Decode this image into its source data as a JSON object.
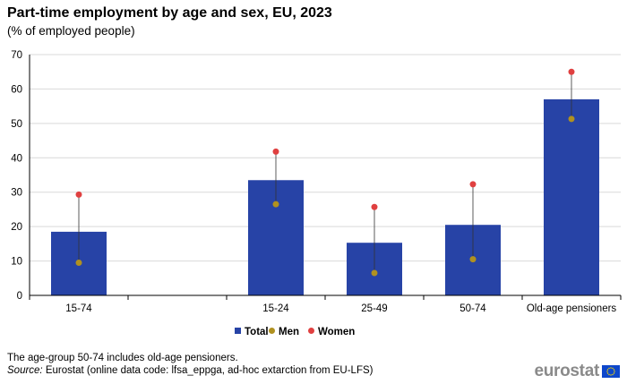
{
  "title": "Part-time employment by age and sex, EU, 2023",
  "subtitle": "(% of employed people)",
  "notes": {
    "line1": "The age-group 50-74 includes old-age pensioners.",
    "source_label": "Source:",
    "source_text": " Eurostat (online data code: lfsa_eppga, ad-hoc extarction from EU-LFS)"
  },
  "logo": {
    "text": "eurostat",
    "flag_icon": "eu-flag-icon"
  },
  "colors": {
    "total": "#2743A6",
    "men": "#B09120",
    "women": "#E04040",
    "grid": "#d9d9d9",
    "axis": "#000000"
  },
  "chart_data": {
    "type": "bar",
    "categories": [
      "15-74",
      "",
      "15-24",
      "25-49",
      "50-74",
      "Old-age pensioners"
    ],
    "series": [
      {
        "name": "Total",
        "type": "bar",
        "values": [
          18.5,
          null,
          33.5,
          15.3,
          20.5,
          57.0
        ]
      },
      {
        "name": "Men",
        "type": "dot",
        "values": [
          9.5,
          null,
          26.5,
          6.5,
          10.5,
          51.3
        ]
      },
      {
        "name": "Women",
        "type": "dot",
        "values": [
          29.3,
          null,
          41.8,
          25.7,
          32.3,
          65.0
        ]
      }
    ],
    "ylim": [
      0,
      70
    ],
    "yticks": [
      0,
      10,
      20,
      30,
      40,
      50,
      60,
      70
    ],
    "grid": true,
    "legend": "bottom-center"
  }
}
